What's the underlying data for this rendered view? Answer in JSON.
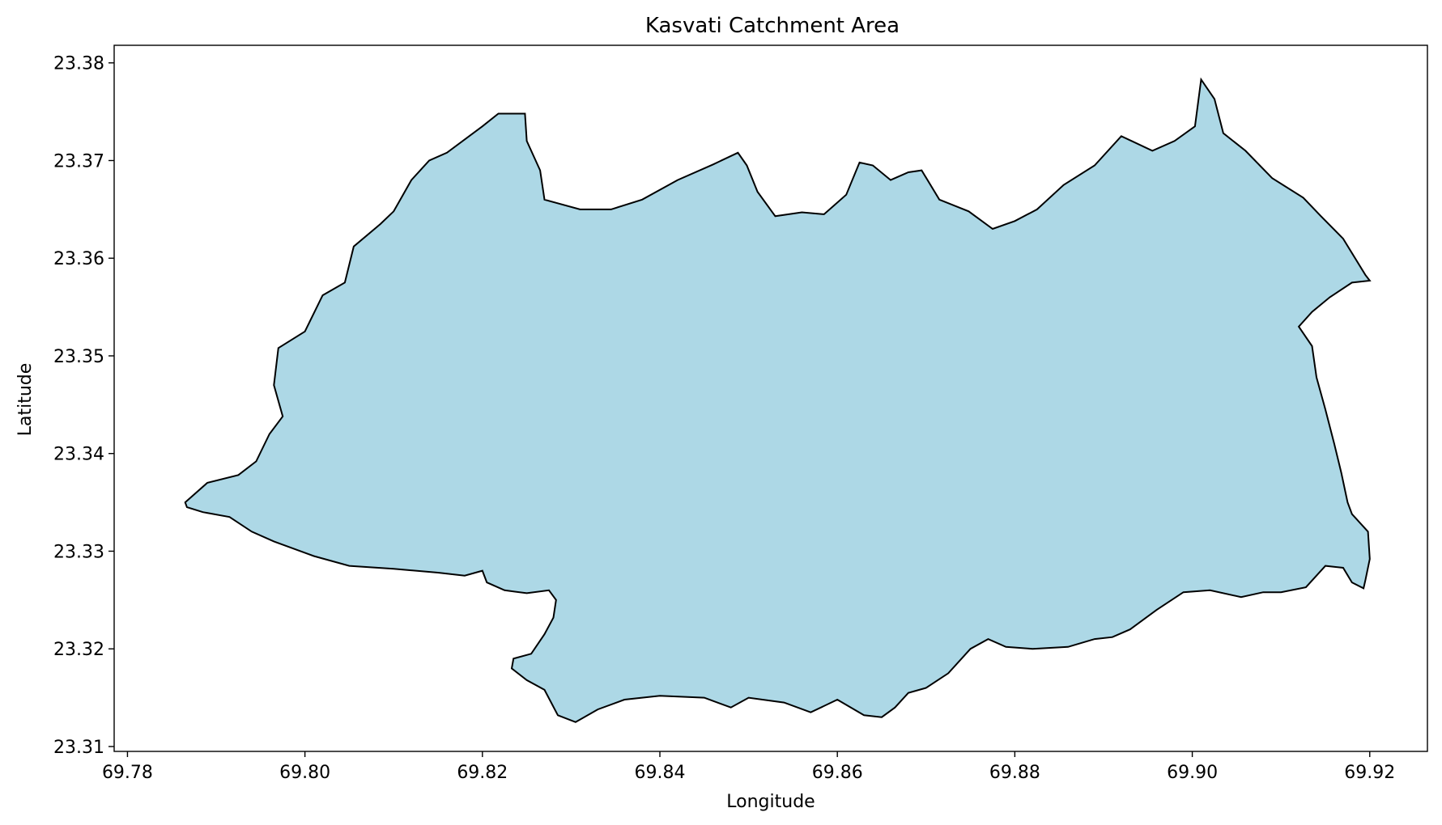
{
  "chart_data": {
    "type": "map",
    "title": "Kasvati Catchment Area",
    "xlabel": "Longitude",
    "ylabel": "Latitude",
    "xlim": [
      69.7785,
      69.9265
    ],
    "ylim": [
      23.3095,
      23.3818
    ],
    "x_ticks": [
      "69.78",
      "69.80",
      "69.82",
      "69.84",
      "69.86",
      "69.88",
      "69.90",
      "69.92"
    ],
    "y_ticks": [
      "23.31",
      "23.32",
      "23.33",
      "23.34",
      "23.35",
      "23.36",
      "23.37",
      "23.38"
    ],
    "grid": false,
    "legend": "none",
    "colors": {
      "fill": "#add8e6",
      "edge": "#000000"
    },
    "polygon": [
      [
        69.7865,
        23.335
      ],
      [
        69.789,
        23.337
      ],
      [
        69.7925,
        23.3378
      ],
      [
        69.7945,
        23.3392
      ],
      [
        69.796,
        23.342
      ],
      [
        69.7975,
        23.3438
      ],
      [
        69.7965,
        23.347
      ],
      [
        69.797,
        23.3508
      ],
      [
        69.8,
        23.3525
      ],
      [
        69.802,
        23.3562
      ],
      [
        69.8045,
        23.3575
      ],
      [
        69.8055,
        23.3612
      ],
      [
        69.8085,
        23.3635
      ],
      [
        69.81,
        23.3648
      ],
      [
        69.812,
        23.368
      ],
      [
        69.814,
        23.37
      ],
      [
        69.816,
        23.3708
      ],
      [
        69.82,
        23.3735
      ],
      [
        69.8218,
        23.3748
      ],
      [
        69.8248,
        23.3748
      ],
      [
        69.825,
        23.372
      ],
      [
        69.8265,
        23.369
      ],
      [
        69.827,
        23.366
      ],
      [
        69.831,
        23.365
      ],
      [
        69.8345,
        23.365
      ],
      [
        69.838,
        23.366
      ],
      [
        69.842,
        23.368
      ],
      [
        69.846,
        23.3696
      ],
      [
        69.8488,
        23.3708
      ],
      [
        69.8498,
        23.3695
      ],
      [
        69.851,
        23.3668
      ],
      [
        69.853,
        23.3643
      ],
      [
        69.856,
        23.3647
      ],
      [
        69.8585,
        23.3645
      ],
      [
        69.861,
        23.3665
      ],
      [
        69.8625,
        23.3698
      ],
      [
        69.864,
        23.3695
      ],
      [
        69.866,
        23.368
      ],
      [
        69.868,
        23.3688
      ],
      [
        69.8695,
        23.369
      ],
      [
        69.8715,
        23.366
      ],
      [
        69.8748,
        23.3648
      ],
      [
        69.8775,
        23.363
      ],
      [
        69.88,
        23.3638
      ],
      [
        69.8825,
        23.365
      ],
      [
        69.8855,
        23.3675
      ],
      [
        69.889,
        23.3695
      ],
      [
        69.892,
        23.3725
      ],
      [
        69.8955,
        23.371
      ],
      [
        69.898,
        23.372
      ],
      [
        69.9003,
        23.3735
      ],
      [
        69.901,
        23.3783
      ],
      [
        69.9025,
        23.3763
      ],
      [
        69.9035,
        23.3728
      ],
      [
        69.906,
        23.371
      ],
      [
        69.909,
        23.3682
      ],
      [
        69.9125,
        23.3662
      ],
      [
        69.9145,
        23.3643
      ],
      [
        69.917,
        23.362
      ],
      [
        69.9195,
        23.3583
      ],
      [
        69.92,
        23.3577
      ],
      [
        69.918,
        23.3575
      ],
      [
        69.9155,
        23.356
      ],
      [
        69.9135,
        23.3545
      ],
      [
        69.912,
        23.353
      ],
      [
        69.9135,
        23.351
      ],
      [
        69.914,
        23.3478
      ],
      [
        69.915,
        23.3445
      ],
      [
        69.916,
        23.341
      ],
      [
        69.9168,
        23.338
      ],
      [
        69.9175,
        23.335
      ],
      [
        69.918,
        23.3338
      ],
      [
        69.9198,
        23.332
      ],
      [
        69.92,
        23.3292
      ],
      [
        69.9195,
        23.327
      ],
      [
        69.9193,
        23.3262
      ],
      [
        69.918,
        23.3268
      ],
      [
        69.917,
        23.3283
      ],
      [
        69.915,
        23.3285
      ],
      [
        69.9128,
        23.3263
      ],
      [
        69.91,
        23.3258
      ],
      [
        69.908,
        23.3258
      ],
      [
        69.9055,
        23.3253
      ],
      [
        69.902,
        23.326
      ],
      [
        69.899,
        23.3258
      ],
      [
        69.896,
        23.324
      ],
      [
        69.893,
        23.322
      ],
      [
        69.891,
        23.3212
      ],
      [
        69.889,
        23.321
      ],
      [
        69.886,
        23.3202
      ],
      [
        69.882,
        23.32
      ],
      [
        69.879,
        23.3202
      ],
      [
        69.877,
        23.321
      ],
      [
        69.875,
        23.32
      ],
      [
        69.8725,
        23.3175
      ],
      [
        69.87,
        23.316
      ],
      [
        69.868,
        23.3155
      ],
      [
        69.8665,
        23.314
      ],
      [
        69.865,
        23.313
      ],
      [
        69.863,
        23.3132
      ],
      [
        69.86,
        23.3148
      ],
      [
        69.857,
        23.3135
      ],
      [
        69.854,
        23.3145
      ],
      [
        69.85,
        23.315
      ],
      [
        69.848,
        23.314
      ],
      [
        69.845,
        23.315
      ],
      [
        69.84,
        23.3152
      ],
      [
        69.836,
        23.3148
      ],
      [
        69.833,
        23.3138
      ],
      [
        69.8305,
        23.3125
      ],
      [
        69.8285,
        23.3132
      ],
      [
        69.827,
        23.3158
      ],
      [
        69.825,
        23.3168
      ],
      [
        69.8233,
        23.318
      ],
      [
        69.8235,
        23.319
      ],
      [
        69.8255,
        23.3195
      ],
      [
        69.827,
        23.3215
      ],
      [
        69.828,
        23.3232
      ],
      [
        69.8283,
        23.325
      ],
      [
        69.8275,
        23.326
      ],
      [
        69.825,
        23.3257
      ],
      [
        69.8225,
        23.326
      ],
      [
        69.8205,
        23.3268
      ],
      [
        69.82,
        23.328
      ],
      [
        69.818,
        23.3275
      ],
      [
        69.815,
        23.3278
      ],
      [
        69.81,
        23.3282
      ],
      [
        69.805,
        23.3285
      ],
      [
        69.801,
        23.3295
      ],
      [
        69.7965,
        23.331
      ],
      [
        69.794,
        23.332
      ],
      [
        69.7915,
        23.3335
      ],
      [
        69.7885,
        23.334
      ],
      [
        69.7867,
        23.3345
      ]
    ]
  }
}
